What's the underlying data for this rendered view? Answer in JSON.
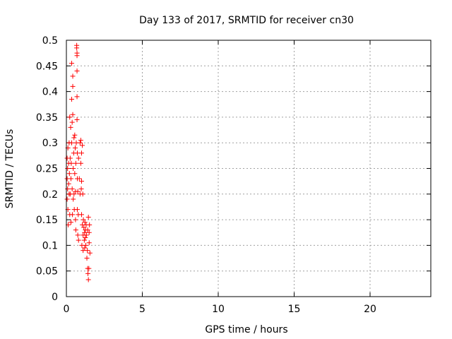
{
  "chart_data": {
    "type": "scatter",
    "title": "Day 133 of 2017, SRMTID for receiver cn30",
    "xlabel": "GPS time / hours",
    "ylabel": "SRMTID / TECUs",
    "xlim": [
      0,
      24
    ],
    "ylim": [
      0,
      0.5
    ],
    "xticks": [
      0,
      5,
      10,
      15,
      20
    ],
    "yticks": [
      0,
      0.05,
      0.1,
      0.15,
      0.2,
      0.25,
      0.3,
      0.35,
      0.4,
      0.45,
      0.5
    ],
    "xtick_labels": [
      "0",
      "5",
      "10",
      "15",
      "20"
    ],
    "ytick_labels": [
      "0",
      "0.05",
      "0.1",
      "0.15",
      "0.2",
      "0.25",
      "0.3",
      "0.35",
      "0.4",
      "0.45",
      "0.5"
    ],
    "grid": true,
    "marker": "+",
    "color": "#ff0000",
    "series": [
      {
        "points": [
          [
            0.05,
            0.27
          ],
          [
            0.05,
            0.23
          ],
          [
            0.05,
            0.19
          ],
          [
            0.08,
            0.21
          ],
          [
            0.08,
            0.25
          ],
          [
            0.1,
            0.29
          ],
          [
            0.1,
            0.17
          ],
          [
            0.12,
            0.14
          ],
          [
            0.15,
            0.26
          ],
          [
            0.15,
            0.22
          ],
          [
            0.18,
            0.2
          ],
          [
            0.18,
            0.3
          ],
          [
            0.2,
            0.24
          ],
          [
            0.22,
            0.35
          ],
          [
            0.22,
            0.16
          ],
          [
            0.25,
            0.27
          ],
          [
            0.25,
            0.2
          ],
          [
            0.28,
            0.33
          ],
          [
            0.3,
            0.23
          ],
          [
            0.3,
            0.145
          ],
          [
            0.32,
            0.26
          ],
          [
            0.35,
            0.455
          ],
          [
            0.35,
            0.385
          ],
          [
            0.35,
            0.3
          ],
          [
            0.38,
            0.34
          ],
          [
            0.38,
            0.21
          ],
          [
            0.4,
            0.16
          ],
          [
            0.42,
            0.43
          ],
          [
            0.42,
            0.41
          ],
          [
            0.42,
            0.355
          ],
          [
            0.45,
            0.25
          ],
          [
            0.45,
            0.19
          ],
          [
            0.48,
            0.28
          ],
          [
            0.5,
            0.31
          ],
          [
            0.5,
            0.2
          ],
          [
            0.52,
            0.17
          ],
          [
            0.55,
            0.315
          ],
          [
            0.55,
            0.24
          ],
          [
            0.58,
            0.29
          ],
          [
            0.6,
            0.205
          ],
          [
            0.6,
            0.15
          ],
          [
            0.62,
            0.26
          ],
          [
            0.62,
            0.13
          ],
          [
            0.65,
            0.3
          ],
          [
            0.68,
            0.49
          ],
          [
            0.68,
            0.485
          ],
          [
            0.7,
            0.475
          ],
          [
            0.7,
            0.47
          ],
          [
            0.7,
            0.44
          ],
          [
            0.7,
            0.39
          ],
          [
            0.7,
            0.345
          ],
          [
            0.72,
            0.28
          ],
          [
            0.72,
            0.23
          ],
          [
            0.72,
            0.17
          ],
          [
            0.75,
            0.12
          ],
          [
            0.75,
            0.205
          ],
          [
            0.78,
            0.16
          ],
          [
            0.8,
            0.11
          ],
          [
            0.8,
            0.27
          ],
          [
            0.85,
            0.23
          ],
          [
            0.9,
            0.3
          ],
          [
            0.9,
            0.2
          ],
          [
            0.95,
            0.305
          ],
          [
            0.95,
            0.26
          ],
          [
            0.98,
            0.21
          ],
          [
            1.0,
            0.28
          ],
          [
            1.0,
            0.225
          ],
          [
            1.0,
            0.16
          ],
          [
            1.02,
            0.1
          ],
          [
            1.05,
            0.295
          ],
          [
            1.05,
            0.14
          ],
          [
            1.08,
            0.2
          ],
          [
            1.1,
            0.12
          ],
          [
            1.1,
            0.09
          ],
          [
            1.12,
            0.15
          ],
          [
            1.15,
            0.135
          ],
          [
            1.18,
            0.11
          ],
          [
            1.2,
            0.125
          ],
          [
            1.2,
            0.095
          ],
          [
            1.22,
            0.145
          ],
          [
            1.25,
            0.13
          ],
          [
            1.25,
            0.115
          ],
          [
            1.28,
            0.1
          ],
          [
            1.3,
            0.14
          ],
          [
            1.32,
            0.12
          ],
          [
            1.35,
            0.075
          ],
          [
            1.38,
            0.09
          ],
          [
            1.4,
            0.055
          ],
          [
            1.4,
            0.13
          ],
          [
            1.42,
            0.045
          ],
          [
            1.45,
            0.033
          ],
          [
            1.45,
            0.155
          ],
          [
            1.48,
            0.055
          ],
          [
            1.5,
            0.105
          ],
          [
            1.5,
            0.125
          ],
          [
            1.52,
            0.14
          ],
          [
            1.55,
            0.085
          ]
        ]
      }
    ]
  }
}
